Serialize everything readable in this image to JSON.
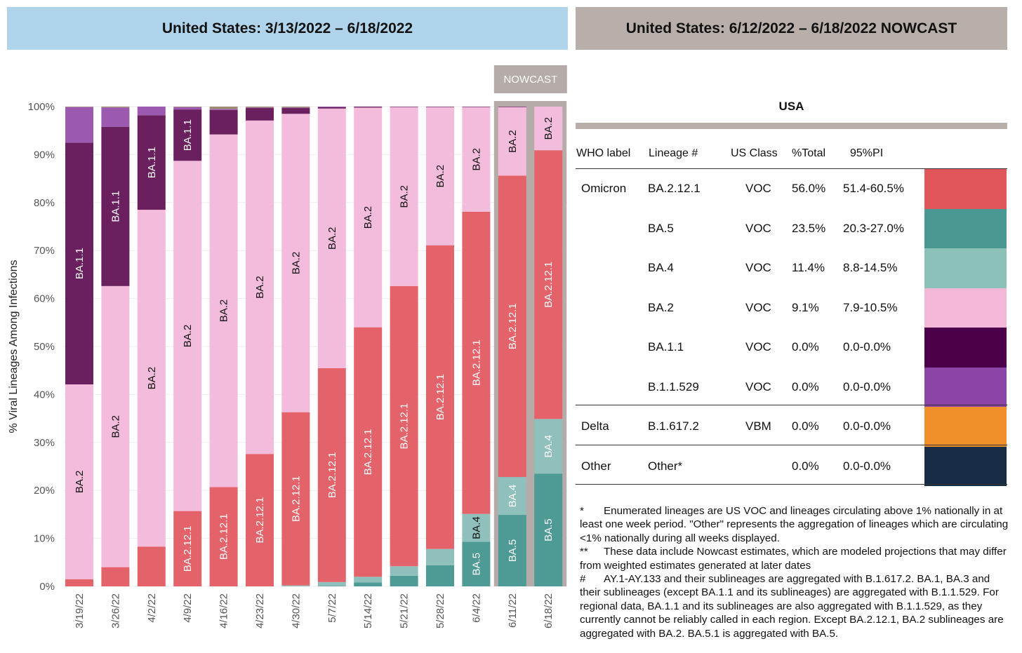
{
  "header_left": "United States: 3/13/2022 – 6/18/2022",
  "header_right": "United States: 6/12/2022 – 6/18/2022 NOWCAST",
  "nowcast_label": "NOWCAST",
  "chart_data": {
    "type": "bar",
    "stacked": true,
    "ylabel": "% Viral Lineages Among Infections",
    "ylim": [
      0,
      100
    ],
    "yticks": [
      "0%",
      "10%",
      "20%",
      "30%",
      "40%",
      "50%",
      "60%",
      "70%",
      "80%",
      "90%",
      "100%"
    ],
    "categories": [
      "3/19/22",
      "3/26/22",
      "4/2/22",
      "4/9/22",
      "4/16/22",
      "4/23/22",
      "4/30/22",
      "5/7/22",
      "5/14/22",
      "5/21/22",
      "5/28/22",
      "6/4/22",
      "6/11/22",
      "6/18/22"
    ],
    "nowcast_categories": [
      "6/11/22",
      "6/18/22"
    ],
    "series": [
      {
        "name": "BA.5",
        "color": "#4e9a95",
        "values": [
          0,
          0,
          0,
          0,
          0,
          0,
          0,
          0.1,
          0.8,
          2.2,
          4.4,
          9.3,
          14.9,
          23.5
        ]
      },
      {
        "name": "BA.4",
        "color": "#8fc0bb",
        "values": [
          0,
          0,
          0,
          0,
          0,
          0,
          0.2,
          0.8,
          1.2,
          2.0,
          3.4,
          5.8,
          7.9,
          11.4
        ]
      },
      {
        "name": "BA.2.12.1",
        "color": "#e4636a",
        "values": [
          1.5,
          4.0,
          8.3,
          15.7,
          20.7,
          27.6,
          36.1,
          44.6,
          52.0,
          58.4,
          63.3,
          63.0,
          62.8,
          56.0
        ]
      },
      {
        "name": "BA.2",
        "color": "#f3bbdc",
        "values": [
          40.6,
          58.6,
          70.2,
          73.0,
          73.5,
          69.5,
          62.2,
          54.1,
          45.8,
          37.3,
          28.8,
          21.8,
          14.3,
          9.1
        ]
      },
      {
        "name": "BA.1.1",
        "color": "#6a1f5e",
        "values": [
          50.4,
          33.2,
          19.7,
          10.7,
          5.1,
          2.6,
          1.2,
          0.3,
          0.2,
          0.1,
          0.1,
          0.1,
          0.1,
          0
        ]
      },
      {
        "name": "B.1.1.529",
        "color": "#9b59b0",
        "values": [
          7.4,
          4.0,
          1.8,
          0.5,
          0.2,
          0.1,
          0.1,
          0.1,
          0,
          0,
          0,
          0,
          0,
          0
        ]
      },
      {
        "name": "Other",
        "color": "#9e8a70",
        "values": [
          0.1,
          0.2,
          0,
          0.1,
          0.5,
          0.2,
          0.2,
          0,
          0,
          0,
          0,
          0,
          0,
          0
        ]
      }
    ],
    "segment_labels": [
      {
        "bar": "3/19/22",
        "series": "BA.2",
        "text": "BA.2",
        "color": "#111111"
      },
      {
        "bar": "3/19/22",
        "series": "BA.1.1",
        "text": "BA.1.1",
        "color": "#ffffff"
      },
      {
        "bar": "3/26/22",
        "series": "BA.2",
        "text": "BA.2",
        "color": "#111111"
      },
      {
        "bar": "3/26/22",
        "series": "BA.1.1",
        "text": "BA.1.1",
        "color": "#ffffff"
      },
      {
        "bar": "4/2/22",
        "series": "BA.2",
        "text": "BA.2",
        "color": "#111111"
      },
      {
        "bar": "4/2/22",
        "series": "BA.1.1",
        "text": "BA.1.1",
        "color": "#ffffff"
      },
      {
        "bar": "4/9/22",
        "series": "BA.2.12.1",
        "text": "BA.2.12.1",
        "color": "#ffffff"
      },
      {
        "bar": "4/9/22",
        "series": "BA.2",
        "text": "BA.2",
        "color": "#111111"
      },
      {
        "bar": "4/9/22",
        "series": "BA.1.1",
        "text": "BA.1.1",
        "color": "#ffffff"
      },
      {
        "bar": "4/16/22",
        "series": "BA.2.12.1",
        "text": "BA.2.12.1",
        "color": "#ffffff"
      },
      {
        "bar": "4/16/22",
        "series": "BA.2",
        "text": "BA.2",
        "color": "#111111"
      },
      {
        "bar": "4/23/22",
        "series": "BA.2.12.1",
        "text": "BA.2.12.1",
        "color": "#ffffff"
      },
      {
        "bar": "4/23/22",
        "series": "BA.2",
        "text": "BA.2",
        "color": "#111111"
      },
      {
        "bar": "4/30/22",
        "series": "BA.2.12.1",
        "text": "BA.2.12.1",
        "color": "#ffffff"
      },
      {
        "bar": "4/30/22",
        "series": "BA.2",
        "text": "BA.2",
        "color": "#111111"
      },
      {
        "bar": "5/7/22",
        "series": "BA.2.12.1",
        "text": "BA.2.12.1",
        "color": "#ffffff"
      },
      {
        "bar": "5/7/22",
        "series": "BA.2",
        "text": "BA.2",
        "color": "#111111"
      },
      {
        "bar": "5/14/22",
        "series": "BA.2.12.1",
        "text": "BA.2.12.1",
        "color": "#ffffff"
      },
      {
        "bar": "5/14/22",
        "series": "BA.2",
        "text": "BA.2",
        "color": "#111111"
      },
      {
        "bar": "5/21/22",
        "series": "BA.2.12.1",
        "text": "BA.2.12.1",
        "color": "#ffffff"
      },
      {
        "bar": "5/21/22",
        "series": "BA.2",
        "text": "BA.2",
        "color": "#111111"
      },
      {
        "bar": "5/28/22",
        "series": "BA.2.12.1",
        "text": "BA.2.12.1",
        "color": "#ffffff"
      },
      {
        "bar": "5/28/22",
        "series": "BA.2",
        "text": "BA.2",
        "color": "#111111"
      },
      {
        "bar": "6/4/22",
        "series": "BA.5",
        "text": "BA.5",
        "color": "#ffffff"
      },
      {
        "bar": "6/4/22",
        "series": "BA.4",
        "text": "BA.4",
        "color": "#111111"
      },
      {
        "bar": "6/4/22",
        "series": "BA.2.12.1",
        "text": "BA.2.12.1",
        "color": "#ffffff"
      },
      {
        "bar": "6/4/22",
        "series": "BA.2",
        "text": "BA.2",
        "color": "#111111"
      },
      {
        "bar": "6/11/22",
        "series": "BA.5",
        "text": "BA.5",
        "color": "#ffffff"
      },
      {
        "bar": "6/11/22",
        "series": "BA.4",
        "text": "BA.4",
        "color": "#ffffff"
      },
      {
        "bar": "6/11/22",
        "series": "BA.2.12.1",
        "text": "BA.2.12.1",
        "color": "#ffffff"
      },
      {
        "bar": "6/11/22",
        "series": "BA.2",
        "text": "BA.2",
        "color": "#111111"
      },
      {
        "bar": "6/18/22",
        "series": "BA.5",
        "text": "BA.5",
        "color": "#ffffff"
      },
      {
        "bar": "6/18/22",
        "series": "BA.4",
        "text": "BA.4",
        "color": "#ffffff"
      },
      {
        "bar": "6/18/22",
        "series": "BA.2.12.1",
        "text": "BA.2.12.1",
        "color": "#ffffff"
      },
      {
        "bar": "6/18/22",
        "series": "BA.2",
        "text": "BA.2",
        "color": "#111111"
      }
    ]
  },
  "table": {
    "title": "USA",
    "headers": {
      "who": "WHO label",
      "lineage": "Lineage #",
      "us_class": "US Class",
      "total": "%Total",
      "pi": "95%PI"
    },
    "rows": [
      {
        "who": "Omicron",
        "lineage": "BA.2.12.1",
        "us_class": "VOC",
        "total": "56.0%",
        "pi": "51.4-60.5%",
        "color": "#e0565b"
      },
      {
        "who": "",
        "lineage": "BA.5",
        "us_class": "VOC",
        "total": "23.5%",
        "pi": "20.3-27.0%",
        "color": "#4a9892"
      },
      {
        "who": "",
        "lineage": "BA.4",
        "us_class": "VOC",
        "total": "11.4%",
        "pi": "8.8-14.5%",
        "color": "#8cc1ba"
      },
      {
        "who": "",
        "lineage": "BA.2",
        "us_class": "VOC",
        "total": "9.1%",
        "pi": "7.9-10.5%",
        "color": "#f3b8d8"
      },
      {
        "who": "",
        "lineage": "BA.1.1",
        "us_class": "VOC",
        "total": "0.0%",
        "pi": "0.0-0.0%",
        "color": "#4b0049"
      },
      {
        "who": "",
        "lineage": "B.1.1.529",
        "us_class": "VOC",
        "total": "0.0%",
        "pi": "0.0-0.0%",
        "color": "#8b45a6"
      },
      {
        "who": "Delta",
        "lineage": "B.1.617.2",
        "us_class": "VBM",
        "total": "0.0%",
        "pi": "0.0-0.0%",
        "color": "#f0902b"
      },
      {
        "who": "Other",
        "lineage": "Other*",
        "us_class": "",
        "total": "0.0%",
        "pi": "0.0-0.0%",
        "color": "#192c45"
      }
    ]
  },
  "footnotes": [
    {
      "mark": "*",
      "text": "Enumerated lineages are US VOC and lineages circulating above 1% nationally in at least one week period. \"Other\" represents the aggregation of lineages which are circulating <1% nationally during all weeks displayed."
    },
    {
      "mark": "**",
      "text": "These data include Nowcast estimates, which are modeled projections that may differ from weighted estimates generated at later dates"
    },
    {
      "mark": "#",
      "text": "AY.1-AY.133 and their sublineages are aggregated with B.1.617.2. BA.1, BA.3 and their sublineages (except BA.1.1 and its sublineages) are aggregated with B.1.1.529. For regional data, BA.1.1 and its sublineages are also aggregated with B.1.1.529, as they currently cannot be reliably called in each region. Except BA.2.12.1, BA.2 sublineages are aggregated with BA.2. BA.5.1 is aggregated with BA.5."
    }
  ]
}
